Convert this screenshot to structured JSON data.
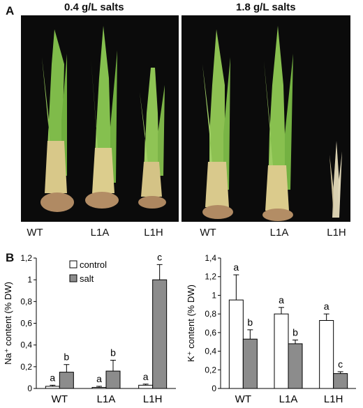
{
  "panel_a": {
    "letter": "A",
    "conditions": [
      "0.4 g/L salts",
      "1.8 g/L salts"
    ],
    "plant_labels": [
      "WT",
      "L1A",
      "L1H",
      "WT",
      "L1A",
      "L1H"
    ]
  },
  "panel_b": {
    "letter": "B",
    "legend": {
      "control": "control",
      "salt": "salt"
    }
  },
  "colors": {
    "control": "#ffffff",
    "salt": "#8c8c8c",
    "background": "#0b0b0b",
    "leaf": "#8fc455"
  },
  "chart_data": [
    {
      "type": "bar",
      "ylabel": "Na⁺ content (% DW)",
      "ylim": [
        0,
        1.2
      ],
      "yticks": [
        "0",
        "0,2",
        "0,4",
        "0,6",
        "0,8",
        "1",
        "1,2"
      ],
      "categories": [
        "WT",
        "L1A",
        "L1H"
      ],
      "series": [
        {
          "name": "control",
          "values": [
            0.02,
            0.01,
            0.03
          ],
          "errors": [
            0.01,
            0.01,
            0.01
          ],
          "letters": [
            "a",
            "a",
            "a"
          ]
        },
        {
          "name": "salt",
          "values": [
            0.15,
            0.16,
            1.0
          ],
          "errors": [
            0.07,
            0.1,
            0.14
          ],
          "letters": [
            "b",
            "b",
            "c"
          ]
        }
      ]
    },
    {
      "type": "bar",
      "ylabel": "K⁺ content (% DW)",
      "ylim": [
        0,
        1.4
      ],
      "yticks": [
        "0",
        "0,2",
        "0,4",
        "0,6",
        "0,8",
        "1",
        "1,2",
        "1,4"
      ],
      "categories": [
        "WT",
        "L1A",
        "L1H"
      ],
      "series": [
        {
          "name": "control",
          "values": [
            0.95,
            0.8,
            0.73
          ],
          "errors": [
            0.27,
            0.07,
            0.07
          ],
          "letters": [
            "a",
            "a",
            "a"
          ]
        },
        {
          "name": "salt",
          "values": [
            0.53,
            0.48,
            0.16
          ],
          "errors": [
            0.1,
            0.04,
            0.02
          ],
          "letters": [
            "b",
            "b",
            "c"
          ]
        }
      ]
    }
  ]
}
